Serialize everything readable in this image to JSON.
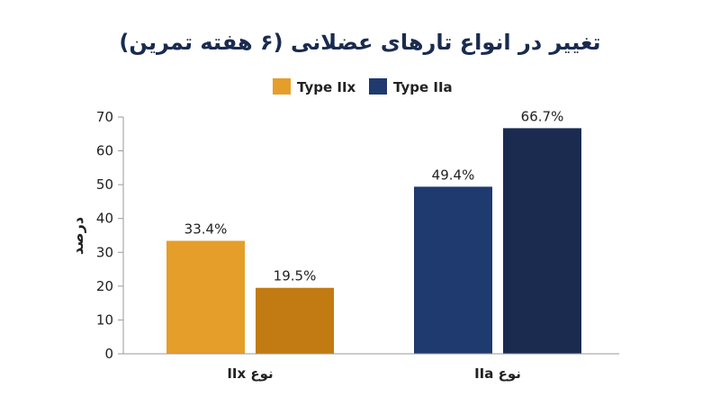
{
  "chart_data": {
    "type": "bar",
    "title": "تغییر در انواع تارهای عضلانی (۶ هفته تمرین)",
    "ylabel": "درصد",
    "xlabel": "",
    "ylim": [
      0,
      70
    ],
    "yticks": [
      0,
      10,
      20,
      30,
      40,
      50,
      60,
      70
    ],
    "legend_position": "top-center",
    "legend": [
      {
        "name": "Type IIx",
        "color": "#E59E2A"
      },
      {
        "name": "Type IIa",
        "color": "#1F3A6E"
      }
    ],
    "groups": [
      {
        "label": "نوع IIx",
        "bars": [
          {
            "value": 33.4,
            "label": "33.4%",
            "color": "#E59E2A"
          },
          {
            "value": 19.5,
            "label": "19.5%",
            "color": "#C27A12"
          }
        ]
      },
      {
        "label": "نوع IIa",
        "bars": [
          {
            "value": 49.4,
            "label": "49.4%",
            "color": "#1F3A6E"
          },
          {
            "value": 66.7,
            "label": "66.7%",
            "color": "#1A2B4F"
          }
        ]
      }
    ]
  }
}
